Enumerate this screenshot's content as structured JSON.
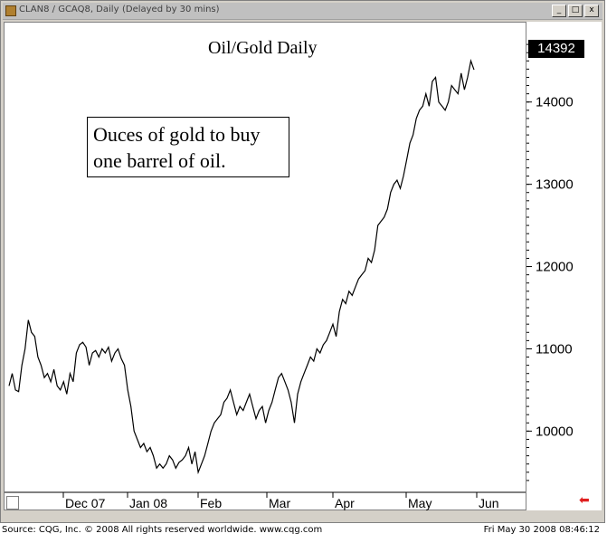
{
  "window": {
    "title": "CLAN8 / GCAQ8, Daily",
    "title_suffix": "(Delayed by 30 mins)",
    "buttons": [
      "_",
      "□",
      "x"
    ]
  },
  "chart_title": "Oil/Gold Daily",
  "annotation": {
    "line1": "Ouces of gold to buy",
    "line2": "one barrel of oil."
  },
  "last_price": "14392",
  "footer": {
    "left": "Source: CQG, Inc. © 2008 All rights reserved worldwide.  www.cqg.com",
    "right": "Fri May 30 2008 08:46:12"
  },
  "chart_data": {
    "type": "line",
    "title": "Oil/Gold Daily",
    "y_ticks": [
      "10000",
      "11000",
      "12000",
      "13000",
      "14000"
    ],
    "y_tick_values": [
      10000,
      11000,
      12000,
      13000,
      14000
    ],
    "ylim": [
      9300,
      14800
    ],
    "x_ticks": [
      "Dec 07",
      "Jan 08",
      "Feb",
      "Mar",
      "Apr",
      "May",
      "Jun"
    ],
    "series": [
      {
        "values": [
          10550,
          10700,
          10500,
          10480,
          10800,
          11000,
          11350,
          11200,
          11150,
          10900,
          10800,
          10650,
          10700,
          10600,
          10750,
          10550,
          10500,
          10600,
          10450,
          10700,
          10600,
          10950,
          11050,
          11080,
          11020,
          10800,
          10950,
          10980,
          10900,
          11000,
          10950,
          11020,
          10850,
          10950,
          11000,
          10880,
          10800,
          10500,
          10300,
          10000,
          9900,
          9800,
          9850,
          9750,
          9800,
          9700,
          9550,
          9600,
          9550,
          9600,
          9700,
          9650,
          9550,
          9620,
          9650,
          9700,
          9800,
          9600,
          9750,
          9500,
          9600,
          9700,
          9850,
          10000,
          10100,
          10150,
          10200,
          10350,
          10400,
          10500,
          10350,
          10200,
          10300,
          10250,
          10350,
          10450,
          10300,
          10150,
          10250,
          10300,
          10100,
          10250,
          10350,
          10500,
          10650,
          10700,
          10600,
          10500,
          10350,
          10100,
          10450,
          10600,
          10700,
          10800,
          10900,
          10850,
          11000,
          10950,
          11050,
          11100,
          11200,
          11300,
          11150,
          11450,
          11600,
          11550,
          11700,
          11650,
          11750,
          11850,
          11900,
          11950,
          12100,
          12050,
          12200,
          12500,
          12550,
          12600,
          12700,
          12900,
          13000,
          13050,
          12950,
          13100,
          13300,
          13500,
          13600,
          13800,
          13900,
          13950,
          14100,
          13950,
          14250,
          14300,
          14000,
          13950,
          13900,
          14000,
          14200,
          14150,
          14100,
          14350,
          14150,
          14300,
          14500,
          14392
        ]
      }
    ]
  }
}
